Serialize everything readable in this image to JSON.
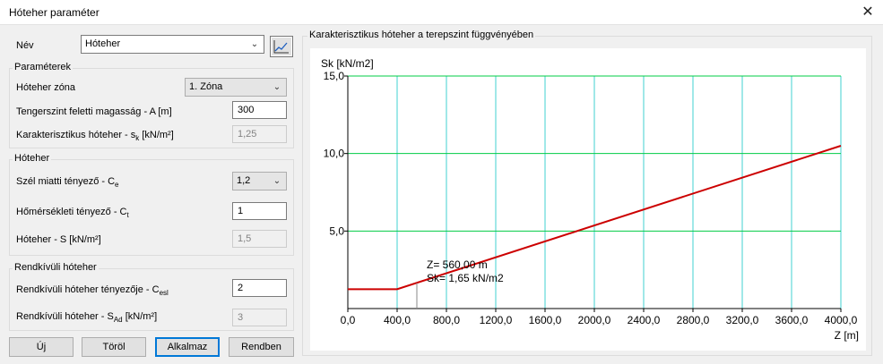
{
  "window": {
    "title": "Hóteher paraméter",
    "close_glyph": "✕"
  },
  "nev": {
    "label": "Név",
    "value": "Hóteher"
  },
  "parameterek": {
    "title": "Paraméterek",
    "zona_label": "Hóteher zóna",
    "zona_value": "1. Zóna",
    "magassag_label": "Tengerszint feletti magasság - A [m]",
    "magassag_value": "300",
    "sk_label_pre": "Karakterisztikus hóteher - s",
    "sk_label_sub": "k",
    "sk_label_post": " [kN/m²]",
    "sk_value": "1,25"
  },
  "hoteher": {
    "title": "Hóteher",
    "ce_label_pre": "Szél miatti tényező - C",
    "ce_label_sub": "e",
    "ce_value": "1,2",
    "ct_label_pre": "Hőmérsékleti tényező - C",
    "ct_label_sub": "t",
    "ct_value": "1",
    "s_label": "Hóteher - S [kN/m²]",
    "s_value": "1,5"
  },
  "rendkivuli": {
    "title": "Rendkívüli hóteher",
    "cesl_label_pre": "Rendkívüli hóteher tényezője - C",
    "cesl_label_sub": "esl",
    "cesl_value": "2",
    "sad_label_pre": "Rendkívüli hóteher - S",
    "sad_label_sub": "Ad",
    "sad_label_post": " [kN/m²]",
    "sad_value": "3"
  },
  "buttons": {
    "new": "Új",
    "delete": "Töröl",
    "apply": "Alkalmaz",
    "ok": "Rendben"
  },
  "icons": {
    "dropdown": "chevron-down-icon",
    "chart_toggle": "line-chart-icon",
    "close": "close-icon"
  },
  "colors": {
    "series": "#cc0000",
    "grid": "#00cc44",
    "vgrid": "#40d0d0",
    "accent": "#0078d7"
  },
  "chart_data": {
    "type": "line",
    "title": "Karakterisztikus hóteher a terepszint függvényében",
    "ylabel": "Sk [kN/m2]",
    "xlabel": "Z [m]",
    "xlim": [
      0,
      4000
    ],
    "ylim": [
      0,
      15
    ],
    "x_ticks": [
      "0,0",
      "400,0",
      "800,0",
      "1200,0",
      "1600,0",
      "2000,0",
      "2400,0",
      "2800,0",
      "3200,0",
      "3600,0",
      "4000,0"
    ],
    "y_ticks": [
      "5,0",
      "10,0",
      "15,0"
    ],
    "series": [
      {
        "x": [
          0,
          400,
          4000
        ],
        "y": [
          1.25,
          1.25,
          10.5
        ]
      }
    ],
    "marker": {
      "x": 560,
      "y": 1.65
    },
    "annotation": [
      "Z= 560,00 m",
      "Sk= 1,65 kN/m2"
    ]
  }
}
